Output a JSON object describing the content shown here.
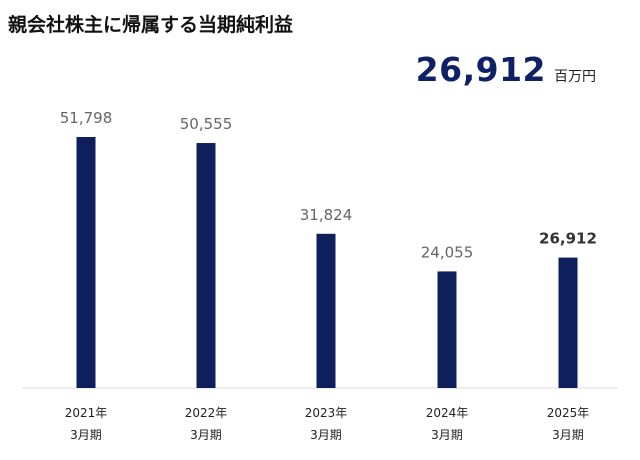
{
  "chart_data": {
    "type": "bar",
    "title": "親会社株主に帰属する当期純利益",
    "headline_value": "26,912",
    "headline_unit": "百万円",
    "categories": [
      {
        "year": "2021年",
        "period": "3月期"
      },
      {
        "year": "2022年",
        "period": "3月期"
      },
      {
        "year": "2023年",
        "period": "3月期"
      },
      {
        "year": "2024年",
        "period": "3月期"
      },
      {
        "year": "2025年",
        "period": "3月期"
      }
    ],
    "values": [
      51798,
      50555,
      31824,
      24055,
      26912
    ],
    "value_labels": [
      "51,798",
      "50,555",
      "31,824",
      "24,055",
      "26,912"
    ],
    "highlight_index": 4,
    "bar_color": "#0f1f5c",
    "label_color": "#666666",
    "highlight_label_color": "#333333",
    "ylim": [
      0,
      51798
    ]
  }
}
